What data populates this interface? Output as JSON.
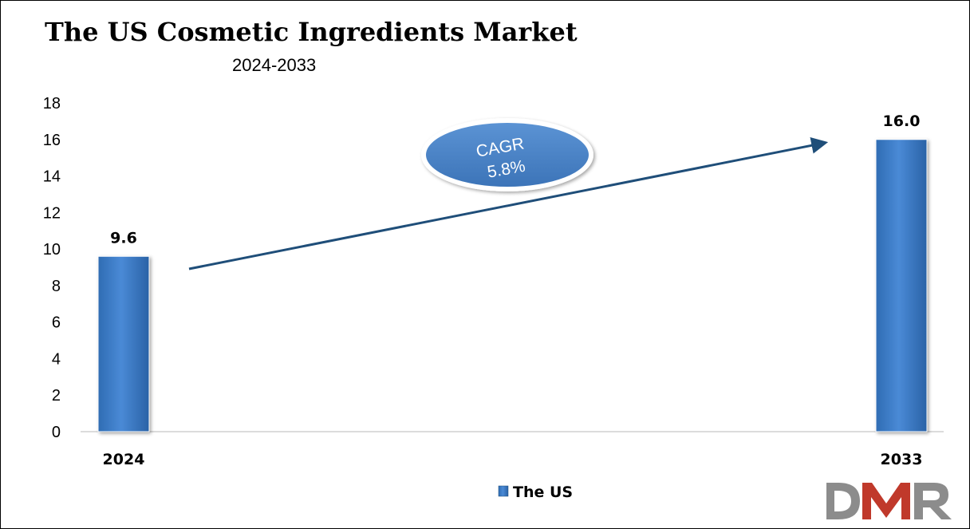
{
  "chart_data": {
    "type": "bar",
    "title": "The US Cosmetic Ingredients Market",
    "subtitle": "2024-2033",
    "categories": [
      "2024",
      "2033"
    ],
    "series": [
      {
        "name": "The US",
        "values": [
          9.6,
          16.0
        ],
        "labels": [
          "9.6",
          "16.0"
        ],
        "color": "#3a7cc8"
      }
    ],
    "ylim": [
      0,
      18
    ],
    "yticks": [
      "0",
      "2",
      "4",
      "6",
      "8",
      "10",
      "12",
      "14",
      "16",
      "18"
    ],
    "grid": false,
    "legend": "bottom-center",
    "annotation": {
      "line1": "CAGR",
      "line2": "5.8%"
    }
  },
  "logo": {
    "text": "DMR"
  },
  "colors": {
    "bar": "#3a7cc8",
    "arrow": "#1f4e79",
    "ellipse": "#4a83c7",
    "logo_grey": "#8c8c8c",
    "logo_red": "#c0392b"
  }
}
